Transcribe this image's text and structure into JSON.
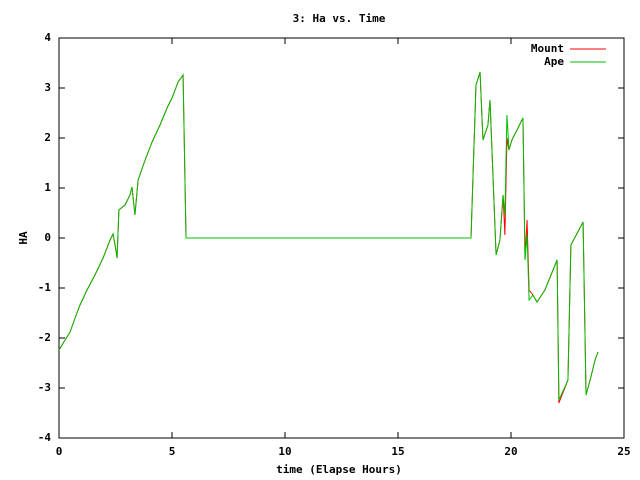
{
  "chart_data": {
    "type": "line",
    "title": "3: Ha vs. Time",
    "x_label": "time (Elapse Hours)",
    "y_label": "HA",
    "xlim": [
      0,
      25
    ],
    "xticks": [
      0,
      5,
      10,
      15,
      20,
      25
    ],
    "ylim": [
      -4,
      4
    ],
    "yticks": [
      -4,
      -3,
      -2,
      -1,
      0,
      1,
      2,
      3,
      4
    ],
    "legend": "upper right",
    "series": [
      {
        "name": "Mount",
        "color": "#ff0000",
        "x": [
          0,
          0.27,
          0.49,
          0.71,
          0.93,
          1.24,
          1.59,
          1.95,
          2.26,
          2.39,
          2.48,
          2.57,
          2.65,
          2.92,
          3.14,
          3.23,
          3.36,
          3.5,
          3.81,
          4.12,
          4.47,
          4.78,
          5.0,
          5.27,
          5.49,
          5.62,
          18.23,
          18.45,
          18.63,
          18.76,
          18.98,
          19.07,
          19.34,
          19.51,
          19.65,
          19.73,
          19.82,
          19.91,
          20.04,
          20.53,
          20.62,
          20.71,
          20.8,
          20.97,
          21.15,
          21.5,
          22.04,
          22.12,
          22.52,
          22.65,
          23.19,
          23.32,
          23.5,
          23.72,
          23.85
        ],
        "values": [
          -2.24,
          -2.04,
          -1.88,
          -1.6,
          -1.34,
          -1.04,
          -0.74,
          -0.4,
          -0.04,
          0.08,
          -0.14,
          -0.4,
          0.56,
          0.66,
          0.86,
          1.02,
          0.46,
          1.16,
          1.56,
          1.92,
          2.26,
          2.6,
          2.8,
          3.12,
          3.26,
          0,
          0,
          3.06,
          3.32,
          1.96,
          2.26,
          2.76,
          -0.34,
          -0.04,
          0.86,
          0.06,
          2.0,
          1.76,
          1.96,
          2.4,
          -0.44,
          0.36,
          -1.04,
          -1.14,
          -1.28,
          -1.04,
          -0.44,
          -3.3,
          -2.84,
          -0.14,
          0.32,
          -3.14,
          -2.84,
          -2.44,
          -2.28
        ]
      },
      {
        "name": "Ape",
        "color": "#00c000",
        "x": [
          0,
          0.27,
          0.49,
          0.71,
          0.93,
          1.24,
          1.59,
          1.95,
          2.26,
          2.39,
          2.48,
          2.57,
          2.65,
          2.92,
          3.14,
          3.23,
          3.36,
          3.5,
          3.81,
          4.12,
          4.47,
          4.78,
          5.0,
          5.27,
          5.49,
          5.62,
          18.23,
          18.45,
          18.63,
          18.76,
          18.98,
          19.07,
          19.34,
          19.51,
          19.65,
          19.73,
          19.82,
          19.91,
          20.04,
          20.53,
          20.62,
          20.71,
          20.8,
          20.97,
          21.15,
          21.5,
          22.04,
          22.12,
          22.52,
          22.65,
          23.19,
          23.32,
          23.5,
          23.72,
          23.85
        ],
        "values": [
          -2.24,
          -2.04,
          -1.88,
          -1.6,
          -1.34,
          -1.04,
          -0.74,
          -0.4,
          -0.04,
          0.08,
          -0.14,
          -0.4,
          0.56,
          0.66,
          0.86,
          1.02,
          0.46,
          1.16,
          1.56,
          1.92,
          2.26,
          2.6,
          2.8,
          3.12,
          3.26,
          0,
          0,
          3.06,
          3.32,
          1.96,
          2.26,
          2.76,
          -0.34,
          -0.04,
          0.86,
          0.46,
          2.46,
          1.76,
          1.96,
          2.4,
          -0.44,
          0.06,
          -1.24,
          -1.14,
          -1.28,
          -1.04,
          -0.44,
          -3.24,
          -2.84,
          -0.14,
          0.32,
          -3.14,
          -2.84,
          -2.44,
          -2.28
        ]
      }
    ]
  }
}
